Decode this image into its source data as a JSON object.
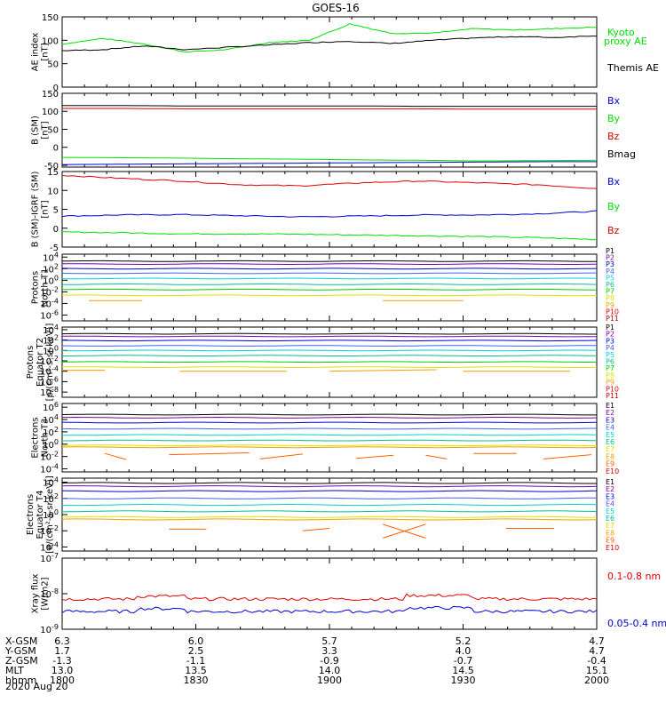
{
  "title": "GOES-16",
  "date": "2020 Aug 20",
  "colors": {
    "black": "#000000",
    "green": "#00e000",
    "red": "#e00000",
    "blue": "#0000d0",
    "P": [
      "#000000",
      "#8000a0",
      "#0000d0",
      "#4060ff",
      "#00d0d0",
      "#00c090",
      "#00d000",
      "#e0e000",
      "#f0a000",
      "#e00000",
      "#c00000"
    ],
    "E": [
      "#000000",
      "#8000a0",
      "#0000d0",
      "#4060ff",
      "#00d0d0",
      "#00c090",
      "#e0e000",
      "#f0a000",
      "#ff6000",
      "#e00000"
    ]
  },
  "footer": {
    "rows": [
      {
        "label": "X-GSM",
        "values": [
          "6.3",
          "6.0",
          "5.7",
          "5.2",
          "4.7"
        ]
      },
      {
        "label": "Y-GSM",
        "values": [
          "1.7",
          "2.5",
          "3.3",
          "4.0",
          "4.7"
        ]
      },
      {
        "label": "Z-GSM",
        "values": [
          "-1.3",
          "-1.1",
          "-0.9",
          "-0.7",
          "-0.4"
        ]
      },
      {
        "label": "MLT",
        "values": [
          "13.0",
          "13.5",
          "14.0",
          "14.5",
          "15.1"
        ]
      },
      {
        "label": "hhmm",
        "values": [
          "1800",
          "1830",
          "1900",
          "1930",
          "2000"
        ]
      }
    ]
  },
  "chart_data": [
    {
      "type": "line",
      "ylabel": "AE index [nT]",
      "ylim": [
        0,
        150
      ],
      "yticks": [
        "0",
        "50",
        "100",
        "150"
      ],
      "legend": [
        "Kyoto proxy AE",
        "Themis AE"
      ],
      "x": [
        "1800",
        "1810",
        "1820",
        "1830",
        "1840",
        "1850",
        "1900",
        "1905",
        "1910",
        "1920",
        "1930",
        "1940",
        "1950",
        "2000"
      ],
      "series": [
        {
          "name": "Kyoto proxy AE",
          "values": [
            92,
            104,
            92,
            75,
            80,
            95,
            100,
            135,
            115,
            115,
            125,
            122,
            125,
            128
          ]
        },
        {
          "name": "Themis AE",
          "values": [
            78,
            80,
            88,
            80,
            85,
            90,
            95,
            98,
            93,
            100,
            105,
            108,
            106,
            110
          ]
        }
      ]
    },
    {
      "type": "line",
      "ylabel": "B (SM) [nT]",
      "ylim": [
        -55,
        150
      ],
      "yticks": [
        "-50",
        "0",
        "50",
        "100",
        "150"
      ],
      "legend": [
        "Bx",
        "By",
        "Bz",
        "Bmag"
      ],
      "series": [
        {
          "name": "Bx",
          "values": [
            -48,
            -47,
            -46,
            -45,
            -44,
            -43,
            -42,
            -41,
            -40,
            -40
          ]
        },
        {
          "name": "By",
          "values": [
            -28,
            -29,
            -30,
            -32,
            -33,
            -35,
            -36,
            -38,
            -37,
            -36
          ]
        },
        {
          "name": "Bz",
          "values": [
            108,
            108,
            107,
            107,
            107,
            107,
            107,
            106,
            106,
            106
          ]
        },
        {
          "name": "Bmag",
          "values": [
            116,
            116,
            115,
            115,
            115,
            115,
            114,
            114,
            114,
            114
          ]
        }
      ]
    },
    {
      "type": "line",
      "ylabel": "B (SM)-IGRF (SM) [nT]",
      "ylim": [
        -5,
        15
      ],
      "yticks": [
        "-5",
        "0",
        "5",
        "10",
        "15"
      ],
      "legend": [
        "Bx",
        "By",
        "Bz"
      ],
      "series": [
        {
          "name": "Bx",
          "values": [
            3.2,
            3.5,
            3.6,
            3.3,
            3.0,
            3.2,
            3.5,
            3.5,
            3.8,
            4.5
          ]
        },
        {
          "name": "By",
          "values": [
            -1.0,
            -1.2,
            -1.5,
            -1.5,
            -1.6,
            -1.8,
            -2.0,
            -2.2,
            -2.5,
            -3.0
          ]
        },
        {
          "name": "Bz",
          "values": [
            14,
            13.2,
            12.5,
            11.5,
            11.2,
            12.0,
            12.5,
            12.0,
            11.5,
            10.5
          ]
        }
      ]
    },
    {
      "type": "line",
      "ylabel": "Protons North T1",
      "yscale": "log",
      "yticks": [
        "10^4",
        "10^2",
        "10^0",
        "10^-2",
        "10^-4",
        "10^-6"
      ],
      "legend": [
        "P1",
        "P2",
        "P3",
        "P4",
        "P5",
        "P6",
        "P7",
        "P8",
        "P9",
        "P10",
        "P11"
      ],
      "series": [
        {
          "name": "P1",
          "logvalues": 3.3
        },
        {
          "name": "P2",
          "logvalues": 2.8
        },
        {
          "name": "P3",
          "logvalues": 2.0
        },
        {
          "name": "P4",
          "logvalues": 1.2
        },
        {
          "name": "P5",
          "logvalues": 0.3
        },
        {
          "name": "P6",
          "logvalues": -0.7
        },
        {
          "name": "P7",
          "logvalues": -1.6
        },
        {
          "name": "P8",
          "logvalues": -2.6
        },
        {
          "name": "P9",
          "logvalues": -3.5
        }
      ]
    },
    {
      "type": "line",
      "ylabel": "Protons Equator T2 [p/(cm²-s-sr-keV)]",
      "yscale": "log",
      "yticks": [
        "10^4",
        "10^2",
        "10^0",
        "10^-2",
        "10^-4",
        "10^-6",
        "10^-8"
      ],
      "legend": [
        "P1",
        "P2",
        "P3",
        "P4",
        "P5",
        "P6",
        "P7",
        "P8",
        "P9",
        "P10",
        "P11"
      ],
      "series": [
        {
          "name": "P1",
          "logvalues": 3.2
        },
        {
          "name": "P2",
          "logvalues": 2.7
        },
        {
          "name": "P3",
          "logvalues": 1.9
        },
        {
          "name": "P4",
          "logvalues": 0.9
        },
        {
          "name": "P5",
          "logvalues": 0.0
        },
        {
          "name": "P6",
          "logvalues": -1.0
        },
        {
          "name": "P7",
          "logvalues": -2.2
        },
        {
          "name": "P8",
          "logvalues": -3.2
        },
        {
          "name": "P9",
          "logvalues": -4.0
        }
      ]
    },
    {
      "type": "line",
      "ylabel": "Electrons North T3",
      "yscale": "log",
      "yticks": [
        "10^6",
        "10^4",
        "10^2",
        "10^0",
        "10^-2",
        "10^-4"
      ],
      "legend": [
        "E1",
        "E2",
        "E3",
        "E4",
        "E5",
        "E6",
        "E7",
        "E8",
        "E9",
        "E10"
      ],
      "series": [
        {
          "name": "E1",
          "logvalues": 4.8
        },
        {
          "name": "E2",
          "logvalues": 4.3
        },
        {
          "name": "E3",
          "logvalues": 3.5
        },
        {
          "name": "E4",
          "logvalues": 2.5
        },
        {
          "name": "E5",
          "logvalues": 1.5
        },
        {
          "name": "E6",
          "logvalues": 0.6
        },
        {
          "name": "E7",
          "logvalues": -0.2
        },
        {
          "name": "E8",
          "logvalues": -0.5
        },
        {
          "name": "E9",
          "logvalues": -2.0
        }
      ]
    },
    {
      "type": "line",
      "ylabel": "Electrons Equator T4 [e/(cm²-s-sr-keV)]",
      "yscale": "log",
      "yticks": [
        "10^4",
        "10^2",
        "10^0",
        "10^-2",
        "10^-4"
      ],
      "legend": [
        "E1",
        "E2",
        "E3",
        "E4",
        "E5",
        "E6",
        "E7",
        "E8",
        "E9",
        "E10"
      ],
      "series": [
        {
          "name": "E1",
          "logvalues": 3.9
        },
        {
          "name": "E2",
          "logvalues": 3.5
        },
        {
          "name": "E3",
          "logvalues": 2.9
        },
        {
          "name": "E4",
          "logvalues": 2.0
        },
        {
          "name": "E5",
          "logvalues": 1.2
        },
        {
          "name": "E6",
          "logvalues": 0.4
        },
        {
          "name": "E7",
          "logvalues": -0.3
        },
        {
          "name": "E8",
          "logvalues": -0.6
        },
        {
          "name": "E9",
          "logvalues": -2.0
        }
      ]
    },
    {
      "type": "line",
      "ylabel": "Xray flux [W/m2]",
      "yscale": "log",
      "yticks": [
        "10^-7",
        "10^-8",
        "10^-9"
      ],
      "legend": [
        "0.1-0.8 nm",
        "0.05-0.4 nm"
      ],
      "series": [
        {
          "name": "0.1-0.8 nm",
          "logvalues": -8.15
        },
        {
          "name": "0.05-0.4 nm",
          "logvalues": -8.5
        }
      ]
    }
  ]
}
